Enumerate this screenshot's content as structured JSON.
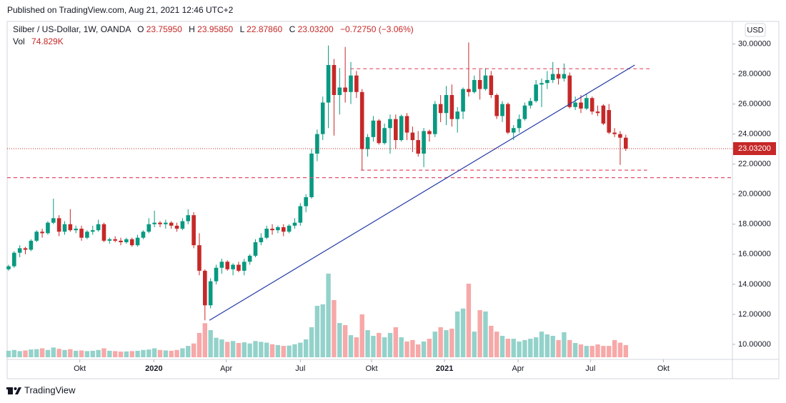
{
  "page": {
    "published": "Published on TradingView.com, Aug 21, 2021 12:46 UTC+2",
    "brand": "TradingView"
  },
  "chart_data": {
    "type": "candlestick",
    "currency": "USD",
    "legend": {
      "symbol": "Silber / US-Dollar, 1W, OANDA",
      "o_label": "O",
      "open": "23.75950",
      "h_label": "H",
      "high": "23.95850",
      "l_label": "L",
      "low": "22.87860",
      "c_label": "C",
      "close": "23.03200",
      "change": "−0.72750 (−3.06%)",
      "vol_label": "Vol",
      "vol": "74.829K"
    },
    "up_color": "#089981",
    "down_color": "#c62828",
    "volume_up_color": "#93d2ca",
    "volume_down_color": "#f7a8a8",
    "level_color": "#e0506a",
    "open": [
      15.0,
      15.2,
      16.1,
      16.4,
      16.3,
      16.9,
      17.5,
      17.4,
      18.1,
      18.4,
      17.5,
      18.0,
      17.6,
      17.7,
      17.1,
      17.5,
      17.6,
      18.0,
      16.9,
      17.0,
      16.9,
      16.8,
      17.0,
      16.6,
      17.1,
      17.5,
      18.0,
      18.1,
      18.0,
      18.1,
      17.9,
      17.7,
      18.2,
      18.6,
      16.6,
      14.9,
      12.6,
      14.2,
      15.1,
      15.5,
      15.0,
      15.3,
      14.9,
      15.5,
      15.9,
      16.8,
      17.1,
      17.7,
      17.6,
      17.8,
      17.5,
      17.9,
      18.1,
      19.2,
      19.8,
      22.7,
      24.0,
      26.1,
      28.6,
      26.6,
      27.1,
      26.8,
      27.9,
      26.8,
      23.0,
      23.8,
      24.9,
      23.4,
      24.4,
      25.0,
      23.6,
      25.2,
      24.1,
      23.6,
      22.7,
      24.2,
      24.0,
      26.0,
      25.4,
      26.6,
      25.0,
      25.5,
      27.0,
      26.8,
      27.6,
      27.0,
      27.9,
      26.6,
      25.2,
      26.0,
      24.1,
      24.4,
      25.0,
      25.9,
      26.2,
      27.3,
      27.4,
      27.6,
      28.0,
      27.7,
      27.9,
      25.8,
      26.1,
      25.7,
      26.4,
      25.5,
      25.9,
      25.6,
      24.1,
      24.0,
      23.7595
    ],
    "high": [
      15.3,
      16.2,
      16.6,
      16.5,
      17.0,
      17.6,
      17.7,
      18.2,
      19.7,
      18.6,
      18.2,
      19.0,
      17.9,
      17.9,
      17.6,
      17.9,
      18.3,
      18.1,
      17.1,
      17.2,
      17.1,
      17.1,
      17.1,
      17.3,
      17.6,
      18.4,
      18.9,
      18.2,
      18.3,
      18.2,
      18.1,
      18.4,
      19.0,
      18.8,
      17.4,
      15.0,
      14.4,
      15.3,
      15.7,
      15.6,
      15.4,
      15.5,
      15.7,
      16.0,
      17.0,
      17.4,
      17.9,
      18.0,
      17.9,
      18.0,
      18.0,
      18.4,
      19.4,
      20.0,
      23.0,
      24.3,
      26.5,
      29.9,
      29.0,
      28.4,
      29.8,
      28.8,
      28.2,
      27.0,
      24.0,
      25.2,
      25.0,
      24.7,
      25.3,
      25.3,
      25.3,
      25.4,
      24.5,
      24.2,
      24.4,
      24.3,
      26.2,
      26.6,
      27.2,
      27.3,
      25.8,
      27.1,
      30.1,
      27.9,
      28.3,
      28.4,
      28.2,
      26.7,
      26.2,
      26.1,
      24.6,
      25.3,
      26.1,
      26.4,
      27.6,
      27.7,
      28.2,
      28.8,
      28.4,
      28.7,
      28.1,
      26.5,
      26.6,
      26.7,
      26.5,
      25.9,
      26.0,
      26.0,
      24.4,
      24.2,
      23.9585
    ],
    "low": [
      14.9,
      15.1,
      15.8,
      16.0,
      16.2,
      16.8,
      17.1,
      17.3,
      18.0,
      17.2,
      17.3,
      17.5,
      17.4,
      16.9,
      17.0,
      17.3,
      17.5,
      16.8,
      16.7,
      16.8,
      16.6,
      16.7,
      16.5,
      16.5,
      17.0,
      17.4,
      17.8,
      17.8,
      17.7,
      17.7,
      17.5,
      17.6,
      18.0,
      16.4,
      14.6,
      11.6,
      12.4,
      14.0,
      14.7,
      14.9,
      14.6,
      14.8,
      14.6,
      15.3,
      15.8,
      16.6,
      17.0,
      17.3,
      17.4,
      17.2,
      17.4,
      17.7,
      17.9,
      18.8,
      19.7,
      22.2,
      23.6,
      24.4,
      23.9,
      25.3,
      26.1,
      26.0,
      26.4,
      21.6,
      22.5,
      23.5,
      23.3,
      23.3,
      22.7,
      23.0,
      23.5,
      23.6,
      22.8,
      22.5,
      21.8,
      23.5,
      23.8,
      24.8,
      24.6,
      24.5,
      24.1,
      25.0,
      26.5,
      26.7,
      26.3,
      26.9,
      26.4,
      25.0,
      24.8,
      24.0,
      23.6,
      24.1,
      24.9,
      25.7,
      26.1,
      25.8,
      27.0,
      27.4,
      27.3,
      27.5,
      25.7,
      25.6,
      25.4,
      25.6,
      25.3,
      25.2,
      24.6,
      24.0,
      23.8,
      21.95,
      22.8786
    ],
    "close": [
      15.2,
      16.1,
      16.4,
      16.3,
      16.9,
      17.5,
      17.4,
      18.1,
      18.4,
      17.5,
      18.0,
      17.6,
      17.7,
      17.1,
      17.5,
      17.6,
      18.0,
      16.9,
      17.0,
      16.9,
      16.8,
      17.0,
      16.6,
      17.1,
      17.5,
      18.0,
      18.1,
      18.0,
      18.1,
      17.9,
      17.7,
      18.2,
      18.6,
      16.6,
      14.9,
      12.6,
      14.2,
      15.1,
      15.5,
      15.0,
      15.3,
      14.9,
      15.5,
      15.9,
      16.8,
      17.1,
      17.7,
      17.6,
      17.8,
      17.5,
      17.9,
      18.1,
      19.2,
      19.8,
      22.7,
      24.0,
      26.1,
      28.6,
      26.6,
      27.1,
      26.8,
      27.9,
      26.8,
      23.0,
      23.8,
      24.9,
      23.4,
      24.4,
      25.0,
      23.6,
      25.2,
      24.1,
      23.6,
      22.7,
      24.2,
      24.0,
      26.0,
      25.4,
      26.6,
      25.0,
      25.5,
      27.0,
      26.8,
      27.6,
      27.0,
      27.9,
      26.6,
      25.2,
      26.0,
      24.1,
      24.4,
      25.0,
      25.9,
      26.2,
      27.3,
      27.4,
      27.6,
      28.0,
      27.7,
      28.0,
      25.8,
      26.1,
      25.7,
      26.4,
      25.5,
      25.4,
      24.7,
      24.1,
      24.0,
      23.76,
      23.032
    ],
    "volume": {
      "ylim": [
        0,
        550
      ],
      "values": [
        40,
        45,
        38,
        42,
        48,
        50,
        55,
        45,
        60,
        52,
        45,
        50,
        40,
        42,
        38,
        40,
        45,
        55,
        40,
        38,
        35,
        36,
        38,
        40,
        45,
        48,
        55,
        45,
        42,
        40,
        45,
        55,
        70,
        85,
        150,
        210,
        167,
        120,
        110,
        95,
        100,
        88,
        92,
        85,
        100,
        95,
        90,
        80,
        75,
        70,
        72,
        80,
        90,
        110,
        185,
        317,
        326,
        515,
        352,
        211,
        198,
        136,
        123,
        264,
        167,
        132,
        150,
        123,
        150,
        185,
        123,
        97,
        106,
        79,
        97,
        114,
        158,
        185,
        167,
        176,
        282,
        300,
        453,
        158,
        290,
        282,
        194,
        158,
        132,
        114,
        114,
        97,
        106,
        114,
        123,
        158,
        141,
        132,
        106,
        154,
        106,
        88,
        79,
        70,
        70,
        79,
        70,
        70,
        106,
        90,
        74.829
      ]
    },
    "xlim": [
      -0.25,
      129
    ],
    "xticks": [
      {
        "value": 12.7,
        "label": "Okt"
      },
      {
        "value": 25.9,
        "label": "2020"
      },
      {
        "value": 38.8,
        "label": "Apr"
      },
      {
        "value": 52.0,
        "label": "Jul"
      },
      {
        "value": 64.7,
        "label": "Okt"
      },
      {
        "value": 77.7,
        "label": "2021"
      },
      {
        "value": 90.8,
        "label": "Apr"
      },
      {
        "value": 103.7,
        "label": "Jul"
      },
      {
        "value": 116.7,
        "label": "Okt"
      }
    ],
    "ylim": [
      9.14,
      31.5
    ],
    "yticks": [
      {
        "value": 10,
        "label": "10.00000"
      },
      {
        "value": 12,
        "label": "12.00000"
      },
      {
        "value": 14,
        "label": "14.00000"
      },
      {
        "value": 16,
        "label": "16.00000"
      },
      {
        "value": 18,
        "label": "18.00000"
      },
      {
        "value": 20,
        "label": "20.00000"
      },
      {
        "value": 22,
        "label": "22.00000"
      },
      {
        "value": 24,
        "label": "24.00000"
      },
      {
        "value": 26,
        "label": "26.00000"
      },
      {
        "value": 28,
        "label": "28.00000"
      },
      {
        "value": 30,
        "label": "30.00000"
      }
    ],
    "levels": [
      {
        "value": 28.35,
        "from": 60.9,
        "to": 114.4
      },
      {
        "value": 21.6,
        "from": 62.8,
        "to": 113.8
      },
      {
        "value": 21.1
      }
    ],
    "trendline": {
      "x": [
        35.8,
        111.6
      ],
      "y": [
        11.6,
        28.6
      ],
      "color": "#2239a6"
    },
    "last_price": {
      "value": 23.032,
      "label": "23.03200"
    }
  }
}
